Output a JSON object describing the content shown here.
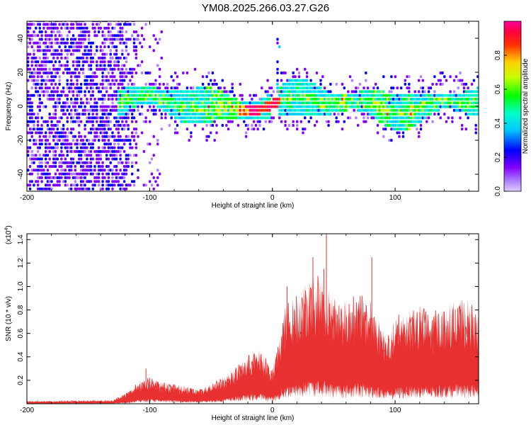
{
  "title": "YM08.2025.266.03.27.G26",
  "chart_data": [
    {
      "type": "heatmap",
      "panel": "spectrogram",
      "xlabel": "Height of straight line (km)",
      "ylabel": "Frequency (Hz)",
      "xlim": [
        -200,
        168
      ],
      "ylim": [
        -50,
        50
      ],
      "xticks": [
        -200,
        -100,
        0,
        100
      ],
      "xtick_labels": [
        "-200",
        "-100",
        "0",
        "100"
      ],
      "yticks": [
        -40,
        -20,
        0,
        20,
        40
      ],
      "ytick_labels": [
        "-40",
        "-20",
        "0",
        "20",
        "40"
      ],
      "colorbar": {
        "label": "Normalized spectral amplitude",
        "range": [
          0,
          1
        ],
        "ticks": [
          0.0,
          0.2,
          0.4,
          0.6,
          0.8
        ],
        "tick_labels": [
          "0.0",
          "0.2",
          "0.4",
          "0.6",
          "0.8"
        ],
        "colormap": [
          "#e0ccff",
          "#8000ff",
          "#0000ff",
          "#00ffff",
          "#00ff00",
          "#ffff00",
          "#ff8000",
          "#ff0000",
          "#ff00ff"
        ]
      },
      "features": {
        "noise_region_x": [
          -200,
          -110
        ],
        "signal_band_center_hz": 0,
        "signal_band_halfwidth_hz": 8,
        "signal_start_x": -128
      }
    },
    {
      "type": "line",
      "panel": "snr",
      "xlabel": "Height of straight line (km)",
      "ylabel": "SNR (10 * v/v)",
      "yscale_label": "(x10",
      "yscale_exp": "4",
      "yscale_close": ")",
      "xlim": [
        -200,
        168
      ],
      "ylim": [
        0,
        1.45
      ],
      "xticks": [
        -200,
        -100,
        0,
        100
      ],
      "xtick_labels": [
        "-200",
        "-100",
        "0",
        "100"
      ],
      "yticks": [
        0.2,
        0.4,
        0.6,
        0.8,
        1.0,
        1.2,
        1.4
      ],
      "ytick_labels": [
        "0.2",
        "0.4",
        "0.6",
        "0.8",
        "1.0",
        "1.2",
        "1.4"
      ],
      "color": "#e83030",
      "envelope": {
        "x": [
          -200,
          -130,
          -120,
          -110,
          -100,
          -90,
          -60,
          -40,
          -20,
          -10,
          0,
          5,
          10,
          20,
          30,
          40,
          50,
          60,
          70,
          80,
          90,
          95,
          100,
          110,
          120,
          130,
          140,
          150,
          160,
          168
        ],
        "y": [
          0.02,
          0.03,
          0.08,
          0.17,
          0.22,
          0.18,
          0.12,
          0.22,
          0.4,
          0.45,
          0.3,
          0.5,
          0.8,
          0.9,
          1.05,
          1.05,
          0.9,
          0.85,
          0.9,
          0.85,
          0.65,
          0.55,
          0.7,
          0.8,
          0.8,
          0.75,
          0.8,
          0.85,
          0.85,
          0.7
        ]
      },
      "spikes": [
        {
          "x": 44,
          "y": 1.45
        },
        {
          "x": 33,
          "y": 1.25
        },
        {
          "x": 81,
          "y": 1.25
        },
        {
          "x": 42,
          "y": 1.15
        },
        {
          "x": 12,
          "y": 1.0
        },
        {
          "x": -103,
          "y": 0.3
        }
      ]
    }
  ]
}
